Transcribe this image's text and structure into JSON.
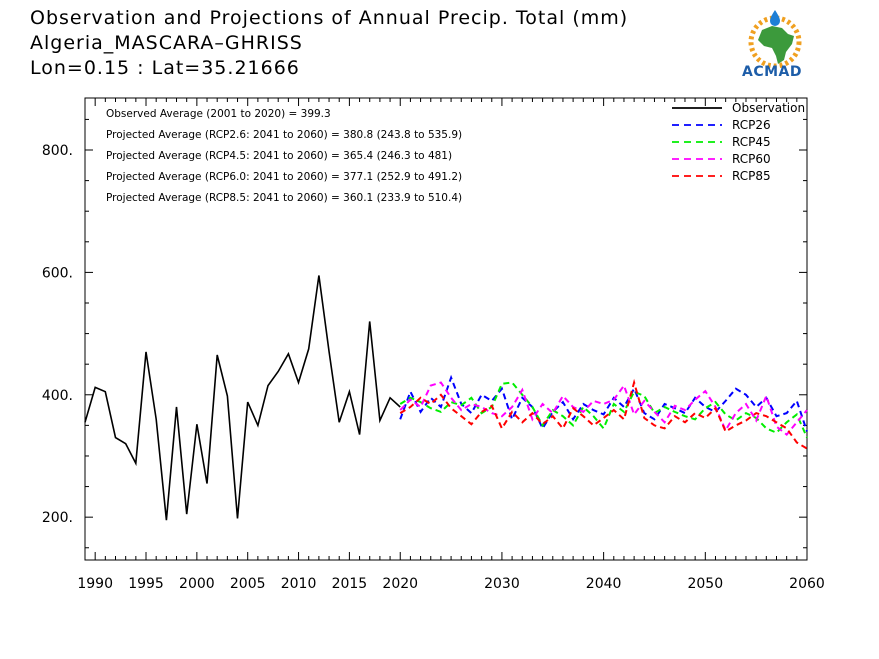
{
  "header": {
    "title_line1": "Observation and Projections of Annual Precip. Total (mm)",
    "title_line2": "Algeria_MASCARA–GHRISS",
    "title_line3": "Lon=0.15 : Lat=35.21666"
  },
  "logo": {
    "text": "ACMAD",
    "colors": {
      "text": "#1d5da8",
      "africa": "#3c9a3c",
      "sun": "#f0a020",
      "drop": "#1d7fd6"
    }
  },
  "stats": [
    "Observed Average (2001 to 2020) = 399.3",
    "Projected Average (RCP2.6: 2041 to 2060) = 380.8 (243.8 to 535.9)",
    "Projected Average (RCP4.5: 2041 to 2060) = 365.4 (246.3 to 481)",
    "Projected Average (RCP6.0: 2041 to 2060) = 377.1 (252.9 to 491.2)",
    "Projected Average (RCP8.5: 2041 to 2060) = 360.1 (233.9 to 510.4)"
  ],
  "chart_data": {
    "type": "line",
    "xlim": [
      1989,
      2060
    ],
    "ylim": [
      130,
      885
    ],
    "x_ticks": [
      1990,
      1995,
      2000,
      2005,
      2010,
      2015,
      2020,
      2030,
      2040,
      2050,
      2060
    ],
    "y_ticks": [
      200,
      400,
      600,
      800
    ],
    "y_tick_labels": [
      "200.",
      "400.",
      "600.",
      "800."
    ],
    "legend_position": "top-right",
    "series": [
      {
        "name": "Observation",
        "color": "#000000",
        "dash": false,
        "x": [
          1989,
          1990,
          1991,
          1992,
          1993,
          1994,
          1995,
          1996,
          1997,
          1998,
          1999,
          2000,
          2001,
          2002,
          2003,
          2004,
          2005,
          2006,
          2007,
          2008,
          2009,
          2010,
          2011,
          2012,
          2013,
          2014,
          2015,
          2016,
          2017,
          2018,
          2019,
          2020
        ],
        "values": [
          355,
          412,
          405,
          330,
          320,
          288,
          470,
          360,
          195,
          380,
          205,
          352,
          255,
          465,
          398,
          198,
          388,
          350,
          415,
          438,
          467,
          420,
          475,
          595,
          470,
          355,
          405,
          335,
          520,
          358,
          395,
          380
        ]
      },
      {
        "name": "RCP26",
        "color": "#0000ff",
        "dash": true,
        "x": [
          2020,
          2021,
          2022,
          2023,
          2024,
          2025,
          2026,
          2027,
          2028,
          2029,
          2030,
          2031,
          2032,
          2033,
          2034,
          2035,
          2036,
          2037,
          2038,
          2039,
          2040,
          2041,
          2042,
          2043,
          2044,
          2045,
          2046,
          2047,
          2048,
          2049,
          2050,
          2051,
          2052,
          2053,
          2054,
          2055,
          2056,
          2057,
          2058,
          2059,
          2060
        ],
        "values": [
          360,
          405,
          372,
          395,
          380,
          428,
          385,
          370,
          400,
          390,
          410,
          360,
          395,
          380,
          345,
          372,
          388,
          360,
          385,
          375,
          368,
          395,
          380,
          410,
          370,
          360,
          385,
          378,
          370,
          395,
          380,
          372,
          390,
          410,
          400,
          380,
          395,
          365,
          370,
          390,
          340
        ]
      },
      {
        "name": "RCP45",
        "color": "#00ee00",
        "dash": true,
        "x": [
          2020,
          2021,
          2022,
          2023,
          2024,
          2025,
          2026,
          2027,
          2028,
          2029,
          2030,
          2031,
          2032,
          2033,
          2034,
          2035,
          2036,
          2037,
          2038,
          2039,
          2040,
          2041,
          2042,
          2043,
          2044,
          2045,
          2046,
          2047,
          2048,
          2049,
          2050,
          2051,
          2052,
          2053,
          2054,
          2055,
          2056,
          2057,
          2058,
          2059,
          2060
        ],
        "values": [
          385,
          395,
          388,
          378,
          372,
          388,
          383,
          395,
          370,
          380,
          418,
          420,
          400,
          380,
          350,
          375,
          365,
          350,
          380,
          365,
          345,
          385,
          372,
          405,
          398,
          370,
          380,
          372,
          365,
          360,
          378,
          388,
          368,
          358,
          370,
          362,
          345,
          338,
          355,
          368,
          330
        ]
      },
      {
        "name": "RCP60",
        "color": "#ff00ff",
        "dash": true,
        "x": [
          2020,
          2021,
          2022,
          2023,
          2024,
          2025,
          2026,
          2027,
          2028,
          2029,
          2030,
          2031,
          2032,
          2033,
          2034,
          2035,
          2036,
          2037,
          2038,
          2039,
          2040,
          2041,
          2042,
          2043,
          2044,
          2045,
          2046,
          2047,
          2048,
          2049,
          2050,
          2051,
          2052,
          2053,
          2054,
          2055,
          2056,
          2057,
          2058,
          2059,
          2060
        ],
        "values": [
          375,
          392,
          380,
          415,
          420,
          395,
          375,
          385,
          380,
          370,
          365,
          380,
          408,
          360,
          385,
          370,
          398,
          380,
          372,
          390,
          385,
          392,
          415,
          368,
          390,
          372,
          355,
          382,
          375,
          392,
          406,
          380,
          342,
          370,
          385,
          358,
          398,
          348,
          335,
          355,
          375
        ]
      },
      {
        "name": "RCP85",
        "color": "#ff0000",
        "dash": true,
        "x": [
          2020,
          2021,
          2022,
          2023,
          2024,
          2025,
          2026,
          2027,
          2028,
          2029,
          2030,
          2031,
          2032,
          2033,
          2034,
          2035,
          2036,
          2037,
          2038,
          2039,
          2040,
          2041,
          2042,
          2043,
          2044,
          2045,
          2046,
          2047,
          2048,
          2049,
          2050,
          2051,
          2052,
          2053,
          2054,
          2055,
          2056,
          2057,
          2058,
          2059,
          2060
        ],
        "values": [
          370,
          380,
          395,
          385,
          400,
          378,
          365,
          352,
          372,
          382,
          345,
          372,
          355,
          370,
          352,
          365,
          345,
          378,
          365,
          350,
          362,
          375,
          360,
          420,
          362,
          350,
          345,
          365,
          355,
          370,
          362,
          378,
          340,
          350,
          358,
          370,
          365,
          355,
          345,
          322,
          312
        ]
      }
    ]
  }
}
